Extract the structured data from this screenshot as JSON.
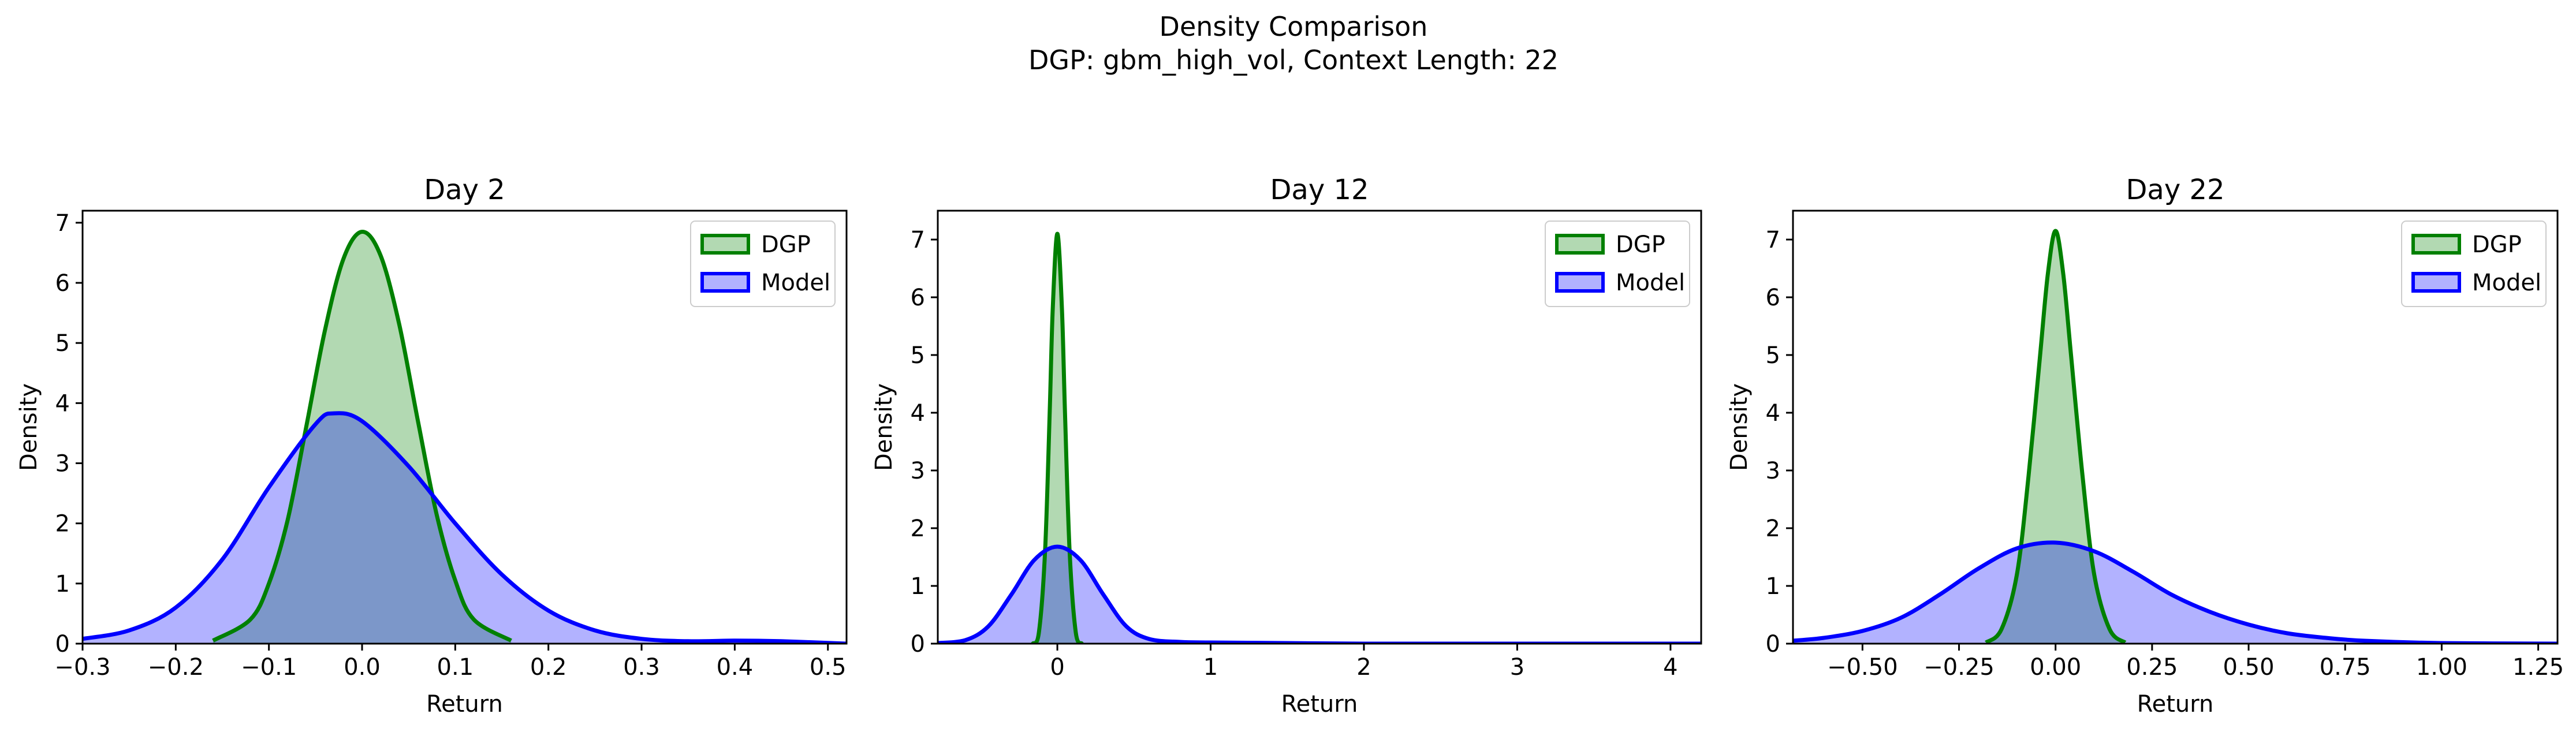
{
  "figure": {
    "title_line1": "Density Comparison",
    "title_line2": "DGP: gbm_high_vol, Context Length: 22"
  },
  "colors": {
    "dgp_line": "#008000",
    "dgp_fill": "#008000",
    "model_line": "#0000ff",
    "model_fill": "#0000ff",
    "axes": "#000000"
  },
  "chart_data": [
    {
      "type": "area",
      "title": "Day 2",
      "xlabel": "Return",
      "ylabel": "Density",
      "xlim": [
        -0.3,
        0.52
      ],
      "ylim": [
        0,
        7.2
      ],
      "xticks": [
        -0.3,
        -0.2,
        -0.1,
        0.0,
        0.1,
        0.2,
        0.3,
        0.4,
        0.5
      ],
      "xtick_labels": [
        "−0.3",
        "−0.2",
        "−0.1",
        "0.0",
        "0.1",
        "0.2",
        "0.3",
        "0.4",
        "0.5"
      ],
      "yticks": [
        0,
        1,
        2,
        3,
        4,
        5,
        6,
        7
      ],
      "ytick_labels": [
        "0",
        "1",
        "2",
        "3",
        "4",
        "5",
        "6",
        "7"
      ],
      "legend": "top-right",
      "series": [
        {
          "name": "DGP",
          "x": [
            -0.16,
            -0.12,
            -0.1,
            -0.08,
            -0.06,
            -0.04,
            -0.02,
            0.0,
            0.02,
            0.04,
            0.06,
            0.08,
            0.1,
            0.12,
            0.16
          ],
          "y": [
            0.05,
            0.4,
            1.0,
            2.05,
            3.6,
            5.2,
            6.4,
            6.85,
            6.45,
            5.3,
            3.7,
            2.15,
            1.05,
            0.4,
            0.05
          ]
        },
        {
          "name": "Model",
          "x": [
            -0.3,
            -0.25,
            -0.2,
            -0.15,
            -0.1,
            -0.05,
            -0.03,
            0.0,
            0.05,
            0.1,
            0.15,
            0.2,
            0.25,
            0.3,
            0.35,
            0.4,
            0.45,
            0.52
          ],
          "y": [
            0.08,
            0.22,
            0.6,
            1.4,
            2.6,
            3.65,
            3.83,
            3.7,
            2.95,
            2.0,
            1.15,
            0.55,
            0.22,
            0.08,
            0.04,
            0.05,
            0.04,
            0.0
          ]
        }
      ]
    },
    {
      "type": "area",
      "title": "Day 12",
      "xlabel": "Return",
      "ylabel": "Density",
      "xlim": [
        -0.78,
        4.2
      ],
      "ylim": [
        0,
        7.5
      ],
      "xticks": [
        0,
        1,
        2,
        3,
        4
      ],
      "xtick_labels": [
        "0",
        "1",
        "2",
        "3",
        "4"
      ],
      "yticks": [
        0,
        1,
        2,
        3,
        4,
        5,
        6,
        7
      ],
      "ytick_labels": [
        "0",
        "1",
        "2",
        "3",
        "4",
        "5",
        "6",
        "7"
      ],
      "legend": "top-right",
      "series": [
        {
          "name": "DGP",
          "x": [
            -0.16,
            -0.12,
            -0.08,
            -0.05,
            -0.03,
            0.0,
            0.03,
            0.05,
            0.08,
            0.12,
            0.16
          ],
          "y": [
            0.0,
            0.2,
            1.6,
            4.0,
            5.8,
            7.1,
            5.8,
            4.0,
            1.6,
            0.2,
            0.0
          ]
        },
        {
          "name": "Model",
          "x": [
            -0.78,
            -0.6,
            -0.45,
            -0.3,
            -0.15,
            0.0,
            0.15,
            0.3,
            0.45,
            0.6,
            0.8,
            1.0,
            1.5,
            2.0,
            3.0,
            4.2
          ],
          "y": [
            0.01,
            0.06,
            0.3,
            0.85,
            1.45,
            1.68,
            1.45,
            0.85,
            0.3,
            0.08,
            0.03,
            0.02,
            0.01,
            0.0,
            0.0,
            0.0
          ]
        }
      ]
    },
    {
      "type": "area",
      "title": "Day 22",
      "xlabel": "Return",
      "ylabel": "Density",
      "xlim": [
        -0.68,
        1.3
      ],
      "ylim": [
        0,
        7.5
      ],
      "xticks": [
        -0.5,
        -0.25,
        0.0,
        0.25,
        0.5,
        0.75,
        1.0,
        1.25
      ],
      "xtick_labels": [
        "−0.50",
        "−0.25",
        "0.00",
        "0.25",
        "0.50",
        "0.75",
        "1.00",
        "1.25"
      ],
      "yticks": [
        0,
        1,
        2,
        3,
        4,
        5,
        6,
        7
      ],
      "ytick_labels": [
        "0",
        "1",
        "2",
        "3",
        "4",
        "5",
        "6",
        "7"
      ],
      "legend": "top-right",
      "series": [
        {
          "name": "DGP",
          "x": [
            -0.18,
            -0.14,
            -0.1,
            -0.07,
            -0.04,
            -0.02,
            0.0,
            0.02,
            0.04,
            0.07,
            0.1,
            0.14,
            0.18
          ],
          "y": [
            0.02,
            0.25,
            1.2,
            2.9,
            5.0,
            6.4,
            7.15,
            6.4,
            5.0,
            2.9,
            1.2,
            0.25,
            0.02
          ]
        },
        {
          "name": "Model",
          "x": [
            -0.68,
            -0.6,
            -0.5,
            -0.4,
            -0.3,
            -0.2,
            -0.1,
            0.0,
            0.1,
            0.2,
            0.3,
            0.4,
            0.5,
            0.6,
            0.7,
            0.8,
            1.0,
            1.3
          ],
          "y": [
            0.05,
            0.1,
            0.22,
            0.45,
            0.85,
            1.3,
            1.65,
            1.75,
            1.6,
            1.25,
            0.85,
            0.55,
            0.33,
            0.18,
            0.1,
            0.05,
            0.01,
            0.0
          ]
        }
      ]
    }
  ]
}
